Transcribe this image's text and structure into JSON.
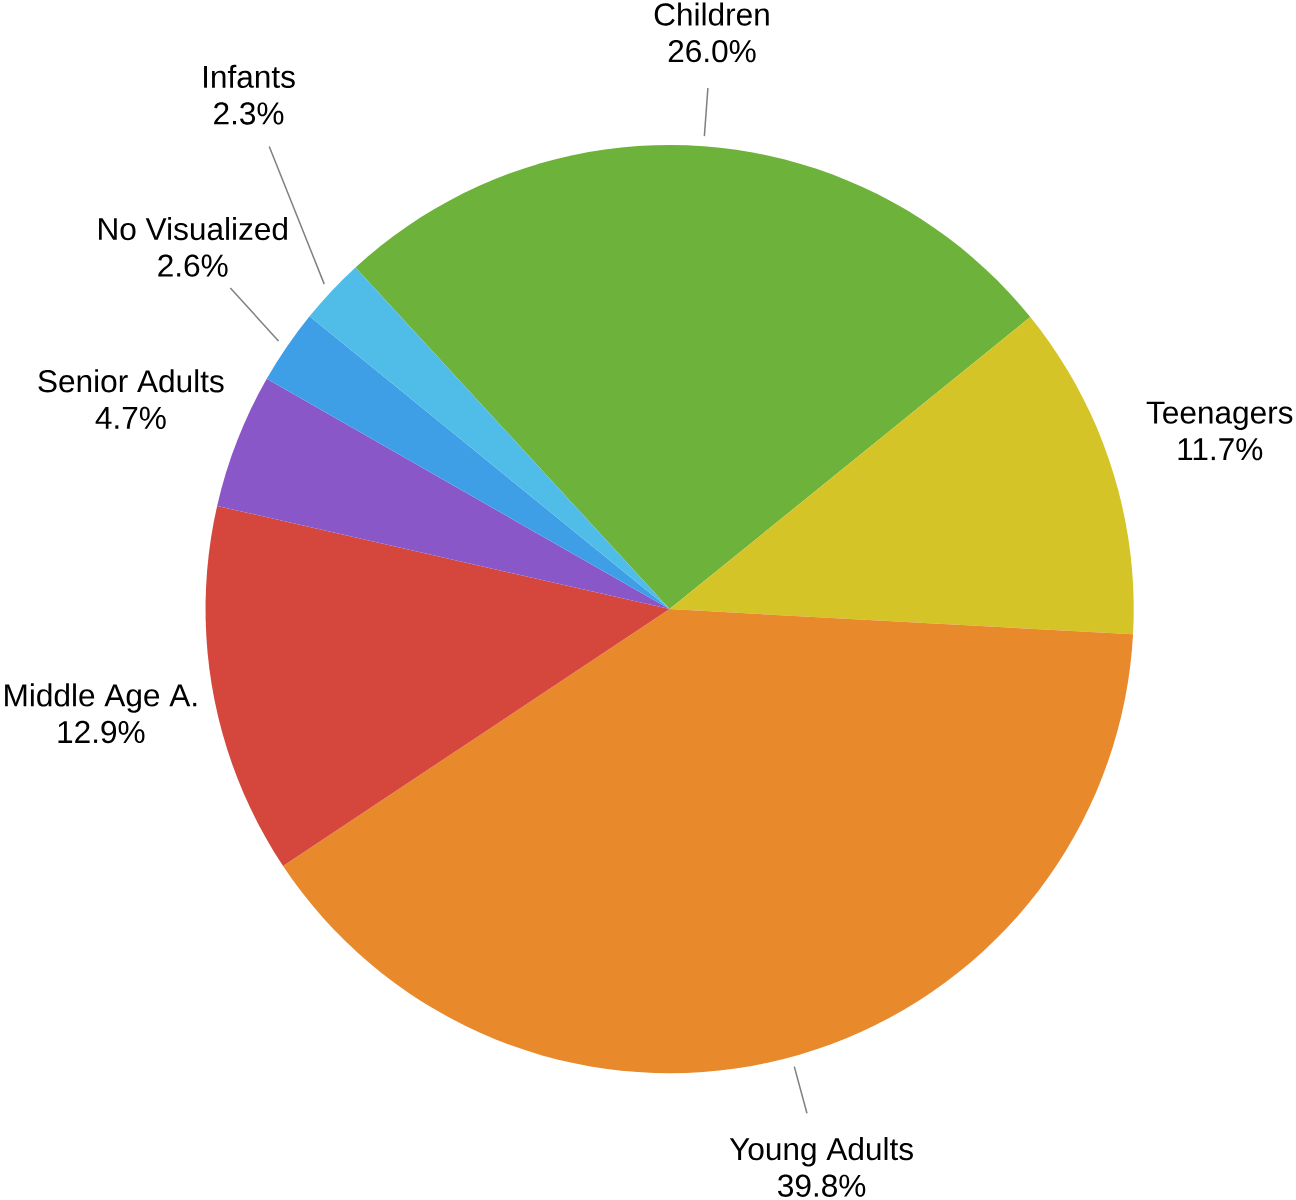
{
  "chart_data": {
    "type": "pie",
    "categories": [
      "Children",
      "Teenagers",
      "Young Adults",
      "Middle Age A.",
      "Senior Adults",
      "No Visualized",
      "Infants"
    ],
    "values": [
      26.0,
      11.7,
      39.8,
      12.9,
      4.7,
      2.6,
      2.3
    ],
    "value_labels": [
      "26.0%",
      "11.7%",
      "39.8%",
      "12.9%",
      "4.7%",
      "2.6%",
      "2.3%"
    ],
    "colors": [
      "#6db23a",
      "#d4c428",
      "#e88a2c",
      "#d5473d",
      "#8a57c9",
      "#3e9ee6",
      "#4fbde8"
    ]
  }
}
